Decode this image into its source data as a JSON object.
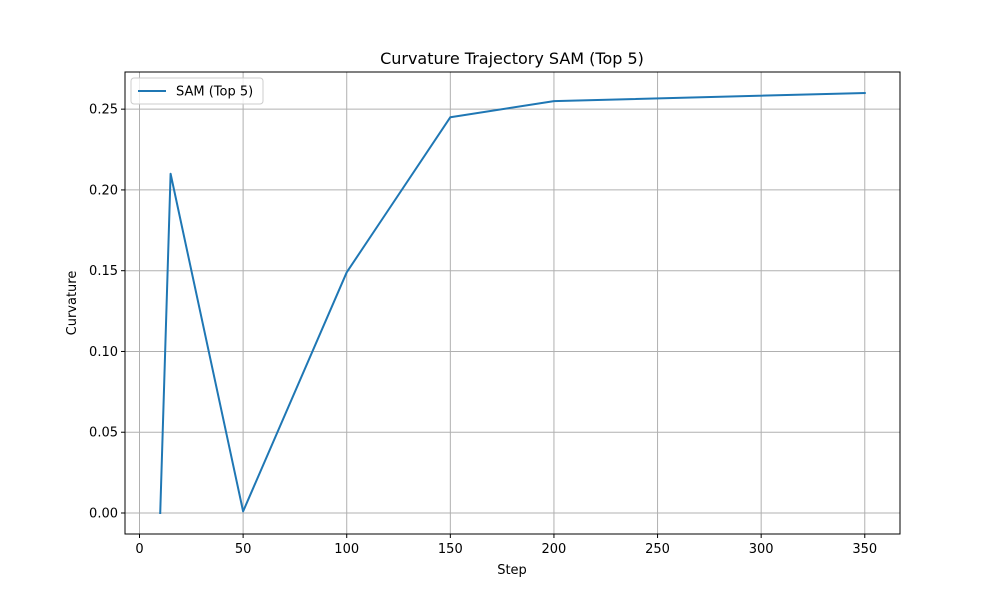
{
  "chart_data": {
    "type": "line",
    "title": "Curvature Trajectory SAM (Top 5)",
    "xlabel": "Step",
    "ylabel": "Curvature",
    "xlim": [
      -7,
      367
    ],
    "ylim": [
      -0.013,
      0.273
    ],
    "xticks": [
      0,
      50,
      100,
      150,
      200,
      250,
      300,
      350
    ],
    "xtick_labels": [
      "0",
      "50",
      "100",
      "150",
      "200",
      "250",
      "300",
      "350"
    ],
    "yticks": [
      0.0,
      0.05,
      0.1,
      0.15,
      0.2,
      0.25
    ],
    "ytick_labels": [
      "0.00",
      "0.05",
      "0.10",
      "0.15",
      "0.20",
      "0.25"
    ],
    "grid": true,
    "legend_position": "top-left",
    "series": [
      {
        "name": "SAM (Top 5)",
        "color": "#1f77b4",
        "x": [
          10,
          15,
          50,
          100,
          150,
          200,
          350
        ],
        "y": [
          0.0,
          0.21,
          0.001,
          0.149,
          0.245,
          0.255,
          0.26
        ]
      }
    ]
  }
}
